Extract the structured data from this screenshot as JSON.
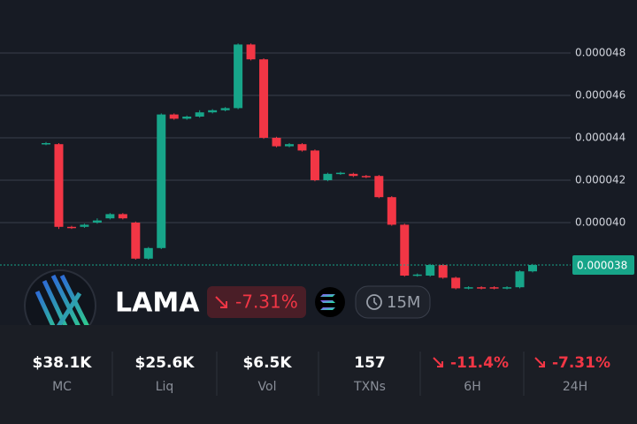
{
  "chart_data": {
    "type": "candlestick",
    "ylim": [
      3.5e-05,
      5.05e-05
    ],
    "yticks": [
      {
        "value": 4e-05,
        "label": "0.000040"
      },
      4.2e-05,
      4.4e-05,
      4.6e-05,
      4.8e-05
    ],
    "grid": true,
    "up_color": "#17a589",
    "down_color": "#f23645",
    "last_price": 3.8e-05,
    "last_price_color": "#17a589",
    "open": [
      4.37e-05,
      4.37e-05,
      3.98e-05,
      3.98e-05,
      4e-05,
      4.02e-05,
      4.04e-05,
      4e-05,
      3.83e-05,
      3.88e-05,
      4.51e-05,
      4.49e-05,
      4.5e-05,
      4.52e-05,
      4.53e-05,
      4.54e-05,
      4.84e-05,
      4.77e-05,
      4.4e-05,
      4.36e-05,
      4.37e-05,
      4.34e-05,
      4.2e-05,
      4.23e-05,
      4.23e-05,
      4.22e-05,
      4.22e-05,
      4.12e-05,
      3.99e-05,
      3.75e-05,
      3.75e-05,
      3.8e-05,
      3.74e-05,
      3.69e-05,
      3.695e-05,
      3.695e-05,
      3.69e-05,
      3.695e-05,
      3.77e-05
    ],
    "high": [
      4.38e-05,
      4.375e-05,
      3.985e-05,
      3.995e-05,
      4.02e-05,
      4.045e-05,
      4.045e-05,
      4.005e-05,
      3.885e-05,
      4.515e-05,
      4.515e-05,
      4.505e-05,
      4.53e-05,
      4.535e-05,
      4.545e-05,
      4.845e-05,
      4.845e-05,
      4.775e-05,
      4.405e-05,
      4.375e-05,
      4.375e-05,
      4.345e-05,
      4.235e-05,
      4.24e-05,
      4.235e-05,
      4.225e-05,
      4.225e-05,
      4.125e-05,
      3.995e-05,
      3.76e-05,
      3.805e-05,
      3.805e-05,
      3.745e-05,
      3.7e-05,
      3.7e-05,
      3.7e-05,
      3.7e-05,
      3.775e-05,
      3.805e-05
    ],
    "low": [
      4.365e-05,
      3.97e-05,
      3.97e-05,
      3.975e-05,
      3.995e-05,
      4.015e-05,
      4.015e-05,
      3.825e-05,
      3.825e-05,
      3.875e-05,
      4.485e-05,
      4.485e-05,
      4.495e-05,
      4.515e-05,
      4.525e-05,
      4.535e-05,
      4.765e-05,
      4.395e-05,
      4.355e-05,
      4.355e-05,
      4.335e-05,
      4.195e-05,
      4.195e-05,
      4.225e-05,
      4.215e-05,
      4.21e-05,
      4.115e-05,
      3.985e-05,
      3.745e-05,
      3.745e-05,
      3.745e-05,
      3.735e-05,
      3.685e-05,
      3.685e-05,
      3.685e-05,
      3.685e-05,
      3.685e-05,
      3.69e-05,
      3.765e-05
    ],
    "close": [
      4.375e-05,
      3.98e-05,
      3.975e-05,
      3.99e-05,
      4.01e-05,
      4.04e-05,
      4.02e-05,
      3.83e-05,
      3.88e-05,
      4.51e-05,
      4.49e-05,
      4.5e-05,
      4.52e-05,
      4.53e-05,
      4.54e-05,
      4.84e-05,
      4.77e-05,
      4.4e-05,
      4.36e-05,
      4.37e-05,
      4.34e-05,
      4.2e-05,
      4.23e-05,
      4.235e-05,
      4.22e-05,
      4.215e-05,
      4.12e-05,
      3.99e-05,
      3.75e-05,
      3.755e-05,
      3.8e-05,
      3.74e-05,
      3.69e-05,
      3.695e-05,
      3.69e-05,
      3.69e-05,
      3.695e-05,
      3.77e-05,
      3.8e-05
    ]
  },
  "token": {
    "name": "LAMA",
    "change": "-7.31%",
    "interval": "15M"
  },
  "stats": [
    {
      "value": "$38.1K",
      "label": "MC"
    },
    {
      "value": "$25.6K",
      "label": "Liq"
    },
    {
      "value": "$6.5K",
      "label": "Vol"
    },
    {
      "value": "157",
      "label": "TXNs"
    },
    {
      "value": "-11.4%",
      "label": "6H"
    },
    {
      "value": "-7.31%",
      "label": "24H"
    }
  ]
}
